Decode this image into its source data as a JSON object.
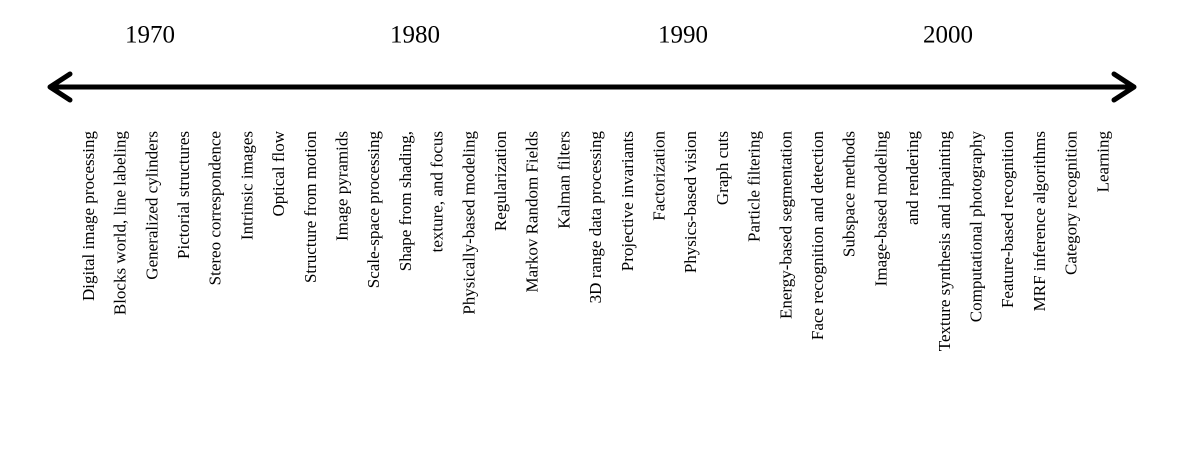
{
  "decades": [
    "1970",
    "1980",
    "1990",
    "2000"
  ],
  "topics": [
    [
      "Digital image processing"
    ],
    [
      "Blocks world, line labeling"
    ],
    [
      "Generalized cylinders"
    ],
    [
      "Pictorial structures"
    ],
    [
      "Stereo correspondence"
    ],
    [
      "Intrinsic images"
    ],
    [
      "Optical flow"
    ],
    [
      "Structure from motion"
    ],
    [
      "Image pyramids"
    ],
    [
      "Scale-space processing"
    ],
    [
      "Shape from shading,",
      "texture, and focus"
    ],
    [
      "Physically-based  modeling"
    ],
    [
      "Regularization"
    ],
    [
      "Markov Random Fields"
    ],
    [
      "Kalman filters"
    ],
    [
      "3D range data processing"
    ],
    [
      "Projective invariants"
    ],
    [
      "Factorization"
    ],
    [
      "Physics-based vision"
    ],
    [
      "Graph cuts"
    ],
    [
      "Particle filtering"
    ],
    [
      "Energy-based segmentation"
    ],
    [
      "Face recognition and detection"
    ],
    [
      "Subspace methods"
    ],
    [
      "Image-based modeling",
      "and rendering"
    ],
    [
      "Texture synthesis and inpainting"
    ],
    [
      "Computational photography"
    ],
    [
      "Feature-based  recognition"
    ],
    [
      "MRF inference algorithms"
    ],
    [
      "Category recognition"
    ],
    [
      "Learning"
    ]
  ]
}
